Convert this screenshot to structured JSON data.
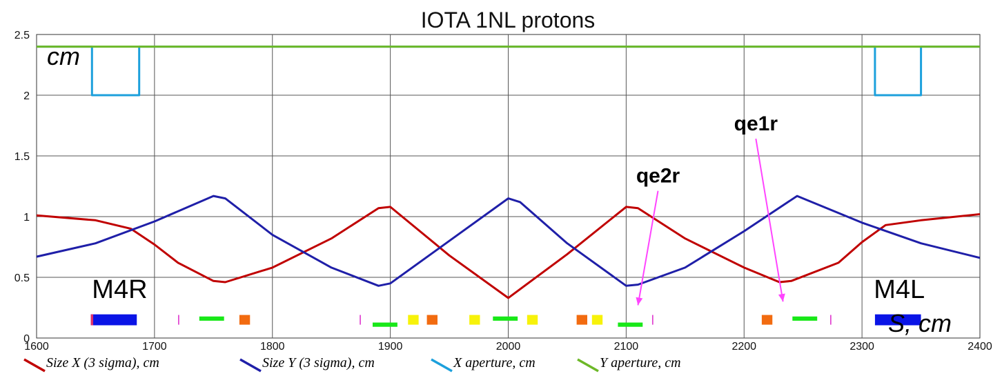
{
  "chart_data": {
    "type": "line",
    "title": "IOTA 1NL protons",
    "xlim": [
      1600,
      2400
    ],
    "ylim": [
      0,
      2.5
    ],
    "xticks": [
      1600,
      1700,
      1800,
      1900,
      2000,
      2100,
      2200,
      2300,
      2400
    ],
    "yticks": [
      0,
      0.5,
      1,
      1.5,
      2,
      2.5
    ],
    "xtick_labels": [
      "1600",
      "1700",
      "1800",
      "1900",
      "2000",
      "2100",
      "2200",
      "2300",
      "2400"
    ],
    "ytick_labels": [
      "0",
      "0.5",
      "1",
      "1.5",
      "2",
      "2.5"
    ],
    "grid": true,
    "ylabel_annotation": "cm",
    "xlabel_annotation": "S, cm",
    "series": [
      {
        "name": "Size X (3 sigma), cm",
        "color": "#c00000",
        "x": [
          1600,
          1650,
          1680,
          1700,
          1720,
          1750,
          1760,
          1800,
          1850,
          1890,
          1900,
          1950,
          2000,
          2050,
          2100,
          2110,
          2150,
          2200,
          2230,
          2240,
          2280,
          2300,
          2320,
          2350,
          2400
        ],
        "y": [
          1.01,
          0.97,
          0.9,
          0.77,
          0.62,
          0.47,
          0.46,
          0.58,
          0.82,
          1.07,
          1.08,
          0.68,
          0.33,
          0.69,
          1.08,
          1.07,
          0.82,
          0.58,
          0.46,
          0.47,
          0.62,
          0.79,
          0.93,
          0.97,
          1.02
        ]
      },
      {
        "name": "Size Y (3 sigma), cm",
        "color": "#1f1fa8",
        "x": [
          1600,
          1650,
          1700,
          1750,
          1760,
          1800,
          1850,
          1890,
          1900,
          1950,
          2000,
          2010,
          2050,
          2100,
          2110,
          2150,
          2200,
          2245,
          2300,
          2350,
          2400
        ],
        "y": [
          0.67,
          0.78,
          0.96,
          1.17,
          1.15,
          0.85,
          0.58,
          0.43,
          0.45,
          0.8,
          1.15,
          1.12,
          0.78,
          0.43,
          0.44,
          0.58,
          0.88,
          1.17,
          0.95,
          0.78,
          0.66
        ]
      },
      {
        "name": "X aperture, cm",
        "color": "#1ca0dc",
        "x": [
          1600,
          1647,
          1647,
          1687,
          1687,
          2311,
          2311,
          2350,
          2350,
          2400
        ],
        "y": [
          2.4,
          2.4,
          2.0,
          2.0,
          2.4,
          2.4,
          2.0,
          2.0,
          2.4,
          2.4
        ]
      },
      {
        "name": "Y aperture, cm",
        "color": "#6db828",
        "x": [
          1600,
          2400
        ],
        "y": [
          2.4,
          2.4
        ]
      }
    ],
    "legend": {
      "placement": "bottom",
      "entries": [
        "Size X (3 sigma), cm",
        "Size Y (3 sigma), cm",
        "X aperture, cm",
        "Y aperture, cm"
      ]
    },
    "annotations": [
      {
        "text": "qe2r",
        "x": 2127,
        "y": 1.28,
        "arrow_to": [
          2110,
          0.27
        ]
      },
      {
        "text": "qe1r",
        "x": 2210,
        "y": 1.71,
        "arrow_to": [
          2233,
          0.3
        ]
      },
      {
        "text": "M4R",
        "x": 1647,
        "y": 0.33
      },
      {
        "text": "M4L",
        "x": 2310,
        "y": 0.33
      }
    ],
    "elements": [
      {
        "type": "dipole",
        "x0": 1646,
        "x1": 1685,
        "color": "#0a14e6",
        "h": 0.09
      },
      {
        "type": "dipole",
        "x0": 1646,
        "x1": 1648,
        "color": "#e0306a",
        "h": 0.09
      },
      {
        "type": "dipole",
        "x0": 2311,
        "x1": 2350,
        "color": "#0a14e6",
        "h": 0.09
      },
      {
        "type": "marker",
        "x0": 1720,
        "x1": 1721,
        "color": "#e040d0",
        "h": 0.08
      },
      {
        "type": "marker",
        "x0": 1874,
        "x1": 1875,
        "color": "#e040d0",
        "h": 0.08
      },
      {
        "type": "marker",
        "x0": 2122,
        "x1": 2123,
        "color": "#e040d0",
        "h": 0.08
      },
      {
        "type": "marker",
        "x0": 2273,
        "x1": 2274,
        "color": "#e040d0",
        "h": 0.08
      },
      {
        "type": "quad",
        "x0": 1738,
        "x1": 1759,
        "color": "#18e818",
        "h": 0.035,
        "ofs": 0.16
      },
      {
        "type": "quad",
        "x0": 1885,
        "x1": 1906,
        "color": "#18e818",
        "h": 0.035,
        "ofs": 0.11
      },
      {
        "type": "quad",
        "x0": 1987,
        "x1": 2008,
        "color": "#18e818",
        "h": 0.035,
        "ofs": 0.16
      },
      {
        "type": "quad",
        "x0": 2093,
        "x1": 2114,
        "color": "#18e818",
        "h": 0.035,
        "ofs": 0.11
      },
      {
        "type": "quad",
        "x0": 2241,
        "x1": 2262,
        "color": "#18e818",
        "h": 0.035,
        "ofs": 0.16
      },
      {
        "type": "sext",
        "x0": 1772,
        "x1": 1781,
        "color": "#f26b10",
        "h": 0.08
      },
      {
        "type": "sext",
        "x0": 1931,
        "x1": 1940,
        "color": "#f26b10",
        "h": 0.08
      },
      {
        "type": "sext",
        "x0": 2058,
        "x1": 2067,
        "color": "#f26b10",
        "h": 0.08
      },
      {
        "type": "sext",
        "x0": 2215,
        "x1": 2224,
        "color": "#f26b10",
        "h": 0.08
      },
      {
        "type": "corr",
        "x0": 1915,
        "x1": 1924,
        "color": "#f7f20a",
        "h": 0.08
      },
      {
        "type": "corr",
        "x0": 1967,
        "x1": 1976,
        "color": "#f7f20a",
        "h": 0.08
      },
      {
        "type": "corr",
        "x0": 2016,
        "x1": 2025,
        "color": "#f7f20a",
        "h": 0.08
      },
      {
        "type": "corr",
        "x0": 2071,
        "x1": 2080,
        "color": "#f7f20a",
        "h": 0.08
      }
    ]
  }
}
